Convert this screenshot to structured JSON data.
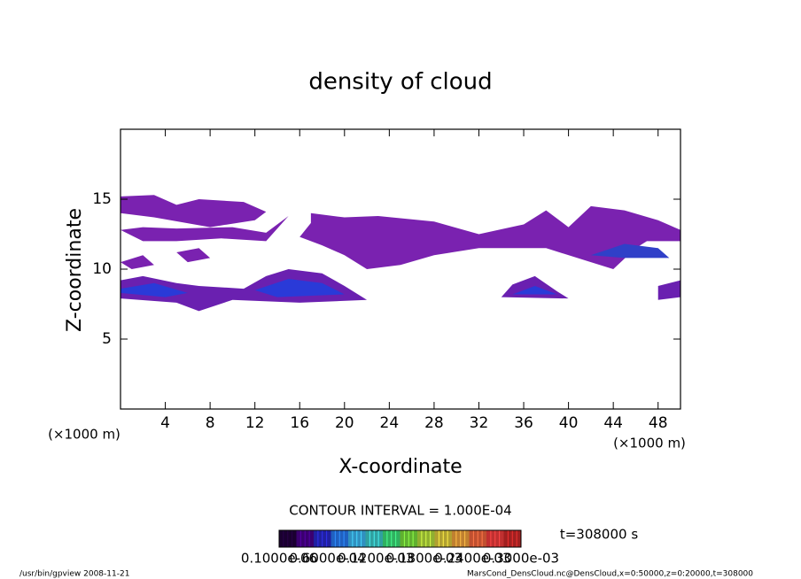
{
  "chart_data": {
    "type": "contour",
    "title": "density of cloud",
    "x_label": "X-coordinate",
    "y_label": "Z-coordinate",
    "x_unit": "(×1000 m)",
    "y_unit": "(×1000 m)",
    "xlim": [
      0,
      50
    ],
    "ylim": [
      0,
      20
    ],
    "xticks": [
      4,
      8,
      12,
      16,
      20,
      24,
      28,
      32,
      36,
      40,
      44,
      48
    ],
    "yticks": [
      5,
      10,
      15
    ],
    "contour_interval": "CONTOUR INTERVAL = 1.000E-04",
    "time_label": "t=308000 s",
    "colorbar_labels": [
      "0.1000e-06",
      "0.6000e-04",
      "0.1200e-03",
      "0.1800e-03",
      "0.2400e-03",
      "0.3000e-03"
    ],
    "colorbar_colors": [
      "#1a0030",
      "#3a0070",
      "#2020a0",
      "#2060c0",
      "#3090c0",
      "#30a0a0",
      "#30b060",
      "#60b030",
      "#90b030",
      "#b0a030",
      "#c08030",
      "#c05030",
      "#c03030",
      "#a02020"
    ],
    "footer_left": "/usr/bin/gpview  2008-11-21",
    "footer_right": "MarsCond_DensCloud.nc@DensCloud,x=0:50000,z=0:20000,t=308000",
    "regions": [
      {
        "color": "#7a22b0",
        "points": [
          [
            0,
            14
          ],
          [
            0,
            15.2
          ],
          [
            3,
            15.3
          ],
          [
            5,
            14.6
          ],
          [
            7,
            15
          ],
          [
            11,
            14.8
          ],
          [
            13,
            14.1
          ],
          [
            12,
            13.5
          ],
          [
            8,
            13
          ],
          [
            3,
            13.7
          ]
        ]
      },
      {
        "color": "#7a22b0",
        "points": [
          [
            0,
            12.8
          ],
          [
            2,
            13
          ],
          [
            5,
            12.9
          ],
          [
            10,
            13
          ],
          [
            13,
            12.6
          ],
          [
            15,
            13.8
          ],
          [
            13,
            12
          ],
          [
            9,
            12.2
          ],
          [
            5,
            12
          ],
          [
            2,
            12
          ]
        ]
      },
      {
        "color": "#7a22b0",
        "points": [
          [
            17,
            15.5
          ],
          [
            17,
            14
          ],
          [
            20,
            13.7
          ],
          [
            23,
            13.8
          ],
          [
            28,
            13.4
          ],
          [
            32,
            12.5
          ],
          [
            36,
            13.2
          ],
          [
            38,
            14.2
          ],
          [
            40,
            13
          ],
          [
            42,
            14.5
          ],
          [
            45,
            14.2
          ],
          [
            48,
            13.5
          ],
          [
            50,
            12.8
          ],
          [
            50,
            12
          ],
          [
            47,
            12
          ],
          [
            46,
            11.5
          ],
          [
            44,
            10
          ],
          [
            42,
            10.5
          ],
          [
            38,
            11.5
          ],
          [
            32,
            11.5
          ],
          [
            28,
            11
          ],
          [
            25,
            10.3
          ],
          [
            22,
            10
          ],
          [
            20,
            11
          ],
          [
            18,
            11.7
          ],
          [
            16,
            12.3
          ],
          [
            17,
            13.3
          ]
        ]
      },
      {
        "color": "#6a20b0",
        "points": [
          [
            0,
            9.2
          ],
          [
            2,
            9.5
          ],
          [
            5,
            9
          ],
          [
            7,
            8.8
          ],
          [
            11,
            8.6
          ],
          [
            13,
            9.5
          ],
          [
            15,
            10
          ],
          [
            18,
            9.7
          ],
          [
            20,
            8.8
          ],
          [
            22,
            7.8
          ],
          [
            16,
            7.6
          ],
          [
            10,
            7.8
          ],
          [
            7,
            7
          ],
          [
            5,
            7.6
          ],
          [
            0,
            7.9
          ]
        ]
      },
      {
        "color": "#2a3ad8",
        "points": [
          [
            0,
            8.6
          ],
          [
            3,
            9
          ],
          [
            6,
            8.3
          ],
          [
            4,
            8
          ],
          [
            0,
            8.3
          ]
        ]
      },
      {
        "color": "#2a3ad8",
        "points": [
          [
            12,
            8.5
          ],
          [
            15,
            9.3
          ],
          [
            18,
            9
          ],
          [
            20,
            8.2
          ],
          [
            14,
            8
          ]
        ]
      },
      {
        "color": "#6a20b0",
        "points": [
          [
            34,
            8
          ],
          [
            35,
            8.9
          ],
          [
            37,
            9.5
          ],
          [
            39,
            8.4
          ],
          [
            40,
            7.9
          ]
        ]
      },
      {
        "color": "#2a3ad8",
        "points": [
          [
            35,
            8.2
          ],
          [
            37,
            8.8
          ],
          [
            39,
            8.2
          ]
        ]
      },
      {
        "color": "#6a20b0",
        "points": [
          [
            48,
            7.8
          ],
          [
            48,
            8.8
          ],
          [
            50,
            9.2
          ],
          [
            50,
            8
          ]
        ]
      },
      {
        "color": "#7a22b0",
        "points": [
          [
            0,
            10.5
          ],
          [
            2,
            11
          ],
          [
            3,
            10.3
          ],
          [
            1,
            10
          ]
        ]
      },
      {
        "color": "#7a22b0",
        "points": [
          [
            5,
            11.2
          ],
          [
            7,
            11.5
          ],
          [
            8,
            10.8
          ],
          [
            6,
            10.5
          ]
        ]
      },
      {
        "color": "#3040c8",
        "points": [
          [
            42,
            11
          ],
          [
            45,
            11.8
          ],
          [
            48,
            11.5
          ],
          [
            49,
            10.8
          ],
          [
            45,
            10.8
          ]
        ]
      }
    ]
  }
}
